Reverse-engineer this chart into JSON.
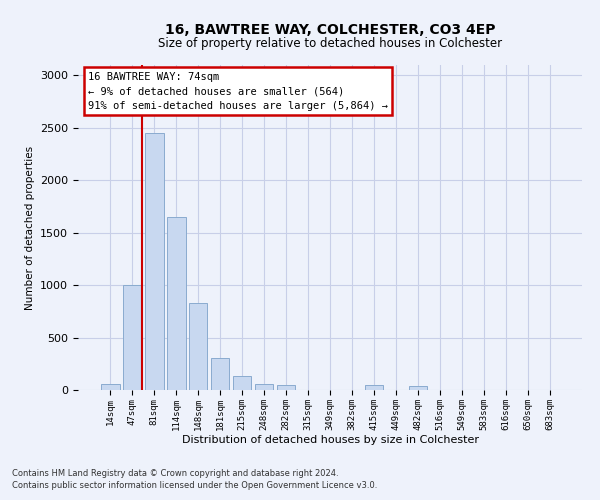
{
  "title1": "16, BAWTREE WAY, COLCHESTER, CO3 4EP",
  "title2": "Size of property relative to detached houses in Colchester",
  "xlabel": "Distribution of detached houses by size in Colchester",
  "ylabel": "Number of detached properties",
  "categories": [
    "14sqm",
    "47sqm",
    "81sqm",
    "114sqm",
    "148sqm",
    "181sqm",
    "215sqm",
    "248sqm",
    "282sqm",
    "315sqm",
    "349sqm",
    "382sqm",
    "415sqm",
    "449sqm",
    "482sqm",
    "516sqm",
    "549sqm",
    "583sqm",
    "616sqm",
    "650sqm",
    "683sqm"
  ],
  "values": [
    60,
    1000,
    2450,
    1650,
    830,
    305,
    130,
    55,
    45,
    0,
    0,
    0,
    45,
    0,
    35,
    0,
    0,
    0,
    0,
    0,
    0
  ],
  "bar_color": "#c8d8f0",
  "bar_edge_color": "#8aabcf",
  "vline_x_idx": 1,
  "vline_color": "#cc0000",
  "annotation_lines": [
    "16 BAWTREE WAY: 74sqm",
    "← 9% of detached houses are smaller (564)",
    "91% of semi-detached houses are larger (5,864) →"
  ],
  "annotation_box_color": "#ffffff",
  "annotation_box_edge": "#cc0000",
  "ylim": [
    0,
    3100
  ],
  "yticks": [
    0,
    500,
    1000,
    1500,
    2000,
    2500,
    3000
  ],
  "footer1": "Contains HM Land Registry data © Crown copyright and database right 2024.",
  "footer2": "Contains public sector information licensed under the Open Government Licence v3.0.",
  "bg_color": "#eef2fb",
  "grid_color": "#c8cfe8"
}
